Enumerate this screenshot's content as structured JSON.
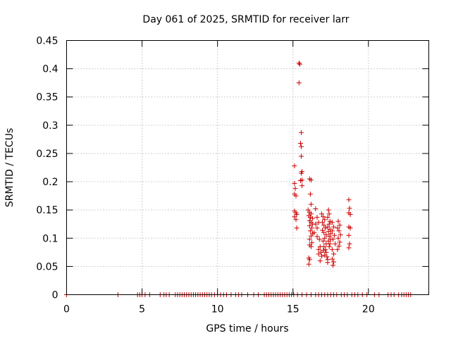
{
  "chart_data": {
    "type": "scatter",
    "title": "Day 061 of 2025, SRMTID for receiver larr",
    "xlabel": "GPS time / hours",
    "ylabel": "SRMTID / TECUs",
    "xlim": [
      0,
      24
    ],
    "ylim": [
      0,
      0.45
    ],
    "xticks": [
      "0",
      "5",
      "10",
      "15",
      "20"
    ],
    "yticks": [
      "0",
      "0.05",
      "0.1",
      "0.15",
      "0.2",
      "0.25",
      "0.3",
      "0.35",
      "0.4",
      "0.45"
    ],
    "grid": true,
    "marker": "plus",
    "color": "#cc0000",
    "series": [
      {
        "points": [
          [
            0,
            0
          ],
          [
            3.4,
            0
          ],
          [
            4.7,
            0
          ],
          [
            4.85,
            0
          ],
          [
            5.0,
            0
          ],
          [
            5.2,
            0
          ],
          [
            5.5,
            0
          ],
          [
            6.2,
            0
          ],
          [
            6.45,
            0
          ],
          [
            6.6,
            0
          ],
          [
            6.8,
            0
          ],
          [
            7.2,
            0
          ],
          [
            7.35,
            0
          ],
          [
            7.5,
            0
          ],
          [
            7.65,
            0
          ],
          [
            7.8,
            0
          ],
          [
            7.95,
            0
          ],
          [
            8.1,
            0
          ],
          [
            8.25,
            0
          ],
          [
            8.4,
            0
          ],
          [
            8.55,
            0
          ],
          [
            8.7,
            0
          ],
          [
            8.85,
            0
          ],
          [
            9.0,
            0
          ],
          [
            9.15,
            0
          ],
          [
            9.3,
            0
          ],
          [
            9.45,
            0
          ],
          [
            9.6,
            0
          ],
          [
            9.8,
            0
          ],
          [
            10.0,
            0
          ],
          [
            10.2,
            0
          ],
          [
            10.4,
            0
          ],
          [
            10.6,
            0
          ],
          [
            10.9,
            0
          ],
          [
            11.2,
            0
          ],
          [
            11.4,
            0
          ],
          [
            11.6,
            0
          ],
          [
            12.0,
            0
          ],
          [
            12.4,
            0
          ],
          [
            12.7,
            0
          ],
          [
            13.1,
            0
          ],
          [
            13.25,
            0
          ],
          [
            13.4,
            0
          ],
          [
            13.55,
            0
          ],
          [
            13.7,
            0
          ],
          [
            13.85,
            0
          ],
          [
            14.0,
            0
          ],
          [
            14.15,
            0
          ],
          [
            14.3,
            0
          ],
          [
            14.45,
            0
          ],
          [
            14.6,
            0
          ],
          [
            14.75,
            0
          ],
          [
            14.9,
            0
          ],
          [
            15.05,
            0
          ],
          [
            15.3,
            0
          ],
          [
            15.6,
            0
          ],
          [
            15.9,
            0
          ],
          [
            16.2,
            0
          ],
          [
            16.5,
            0
          ],
          [
            16.7,
            0
          ],
          [
            16.9,
            0
          ],
          [
            17.1,
            0
          ],
          [
            17.3,
            0
          ],
          [
            17.5,
            0
          ],
          [
            17.7,
            0
          ],
          [
            17.9,
            0
          ],
          [
            18.2,
            0
          ],
          [
            18.4,
            0
          ],
          [
            18.6,
            0
          ],
          [
            18.9,
            0
          ],
          [
            19.1,
            0
          ],
          [
            19.3,
            0
          ],
          [
            19.6,
            0
          ],
          [
            19.9,
            0
          ],
          [
            20.4,
            0
          ],
          [
            20.7,
            0
          ],
          [
            21.3,
            0
          ],
          [
            21.5,
            0
          ],
          [
            21.7,
            0
          ],
          [
            22.0,
            0
          ],
          [
            22.2,
            0
          ],
          [
            22.35,
            0
          ],
          [
            22.5,
            0
          ],
          [
            22.65,
            0
          ],
          [
            22.8,
            0
          ],
          [
            15.1,
            0.228
          ],
          [
            15.1,
            0.197
          ],
          [
            15.15,
            0.188
          ],
          [
            15.1,
            0.178
          ],
          [
            15.2,
            0.175
          ],
          [
            15.1,
            0.148
          ],
          [
            15.2,
            0.145
          ],
          [
            15.25,
            0.142
          ],
          [
            15.1,
            0.138
          ],
          [
            15.2,
            0.133
          ],
          [
            15.25,
            0.118
          ],
          [
            15.4,
            0.41
          ],
          [
            15.45,
            0.408
          ],
          [
            15.4,
            0.375
          ],
          [
            15.55,
            0.287
          ],
          [
            15.5,
            0.268
          ],
          [
            15.55,
            0.262
          ],
          [
            15.55,
            0.245
          ],
          [
            15.6,
            0.218
          ],
          [
            15.55,
            0.215
          ],
          [
            15.6,
            0.203
          ],
          [
            15.5,
            0.202
          ],
          [
            15.6,
            0.193
          ],
          [
            16.1,
            0.205
          ],
          [
            16.2,
            0.203
          ],
          [
            16.15,
            0.178
          ],
          [
            16.2,
            0.16
          ],
          [
            16.0,
            0.15
          ],
          [
            16.1,
            0.146
          ],
          [
            16.2,
            0.143
          ],
          [
            16.05,
            0.14
          ],
          [
            16.15,
            0.137
          ],
          [
            16.3,
            0.135
          ],
          [
            16.1,
            0.131
          ],
          [
            16.2,
            0.128
          ],
          [
            16.3,
            0.125
          ],
          [
            16.1,
            0.122
          ],
          [
            16.25,
            0.118
          ],
          [
            16.15,
            0.113
          ],
          [
            16.3,
            0.108
          ],
          [
            16.2,
            0.104
          ],
          [
            16.1,
            0.098
          ],
          [
            16.25,
            0.092
          ],
          [
            16.1,
            0.088
          ],
          [
            16.2,
            0.085
          ],
          [
            16.05,
            0.065
          ],
          [
            16.1,
            0.062
          ],
          [
            16.05,
            0.054
          ],
          [
            16.5,
            0.152
          ],
          [
            16.6,
            0.137
          ],
          [
            16.7,
            0.128
          ],
          [
            16.5,
            0.125
          ],
          [
            16.6,
            0.118
          ],
          [
            16.4,
            0.11
          ],
          [
            16.6,
            0.103
          ],
          [
            16.75,
            0.098
          ],
          [
            16.8,
            0.085
          ],
          [
            16.7,
            0.08
          ],
          [
            16.85,
            0.075
          ],
          [
            16.7,
            0.072
          ],
          [
            16.9,
            0.068
          ],
          [
            16.8,
            0.06
          ],
          [
            16.9,
            0.143
          ],
          [
            17.0,
            0.138
          ],
          [
            17.1,
            0.133
          ],
          [
            16.95,
            0.128
          ],
          [
            17.05,
            0.123
          ],
          [
            17.15,
            0.118
          ],
          [
            16.95,
            0.114
          ],
          [
            17.05,
            0.11
          ],
          [
            17.2,
            0.106
          ],
          [
            17.1,
            0.1
          ],
          [
            17.0,
            0.095
          ],
          [
            17.2,
            0.09
          ],
          [
            17.05,
            0.085
          ],
          [
            17.15,
            0.08
          ],
          [
            17.0,
            0.078
          ],
          [
            17.2,
            0.075
          ],
          [
            17.1,
            0.07
          ],
          [
            17.25,
            0.067
          ],
          [
            17.3,
            0.062
          ],
          [
            17.3,
            0.057
          ],
          [
            17.35,
            0.15
          ],
          [
            17.4,
            0.143
          ],
          [
            17.3,
            0.137
          ],
          [
            17.45,
            0.13
          ],
          [
            17.4,
            0.125
          ],
          [
            17.3,
            0.12
          ],
          [
            17.45,
            0.116
          ],
          [
            17.35,
            0.112
          ],
          [
            17.5,
            0.108
          ],
          [
            17.4,
            0.103
          ],
          [
            17.5,
            0.098
          ],
          [
            17.35,
            0.095
          ],
          [
            17.45,
            0.09
          ],
          [
            17.4,
            0.085
          ],
          [
            17.6,
            0.128
          ],
          [
            17.7,
            0.12
          ],
          [
            17.6,
            0.113
          ],
          [
            17.75,
            0.105
          ],
          [
            17.65,
            0.098
          ],
          [
            17.8,
            0.09
          ],
          [
            17.6,
            0.08
          ],
          [
            17.7,
            0.072
          ],
          [
            17.6,
            0.063
          ],
          [
            17.7,
            0.058
          ],
          [
            17.65,
            0.052
          ],
          [
            18.0,
            0.13
          ],
          [
            18.1,
            0.123
          ],
          [
            17.95,
            0.118
          ],
          [
            18.05,
            0.113
          ],
          [
            18.15,
            0.106
          ],
          [
            18.0,
            0.1
          ],
          [
            18.1,
            0.093
          ],
          [
            18.05,
            0.086
          ],
          [
            17.95,
            0.08
          ],
          [
            18.7,
            0.168
          ],
          [
            18.75,
            0.153
          ],
          [
            18.7,
            0.145
          ],
          [
            18.8,
            0.142
          ],
          [
            18.7,
            0.12
          ],
          [
            18.8,
            0.118
          ],
          [
            18.7,
            0.105
          ],
          [
            18.75,
            0.09
          ],
          [
            18.7,
            0.083
          ]
        ]
      }
    ]
  }
}
